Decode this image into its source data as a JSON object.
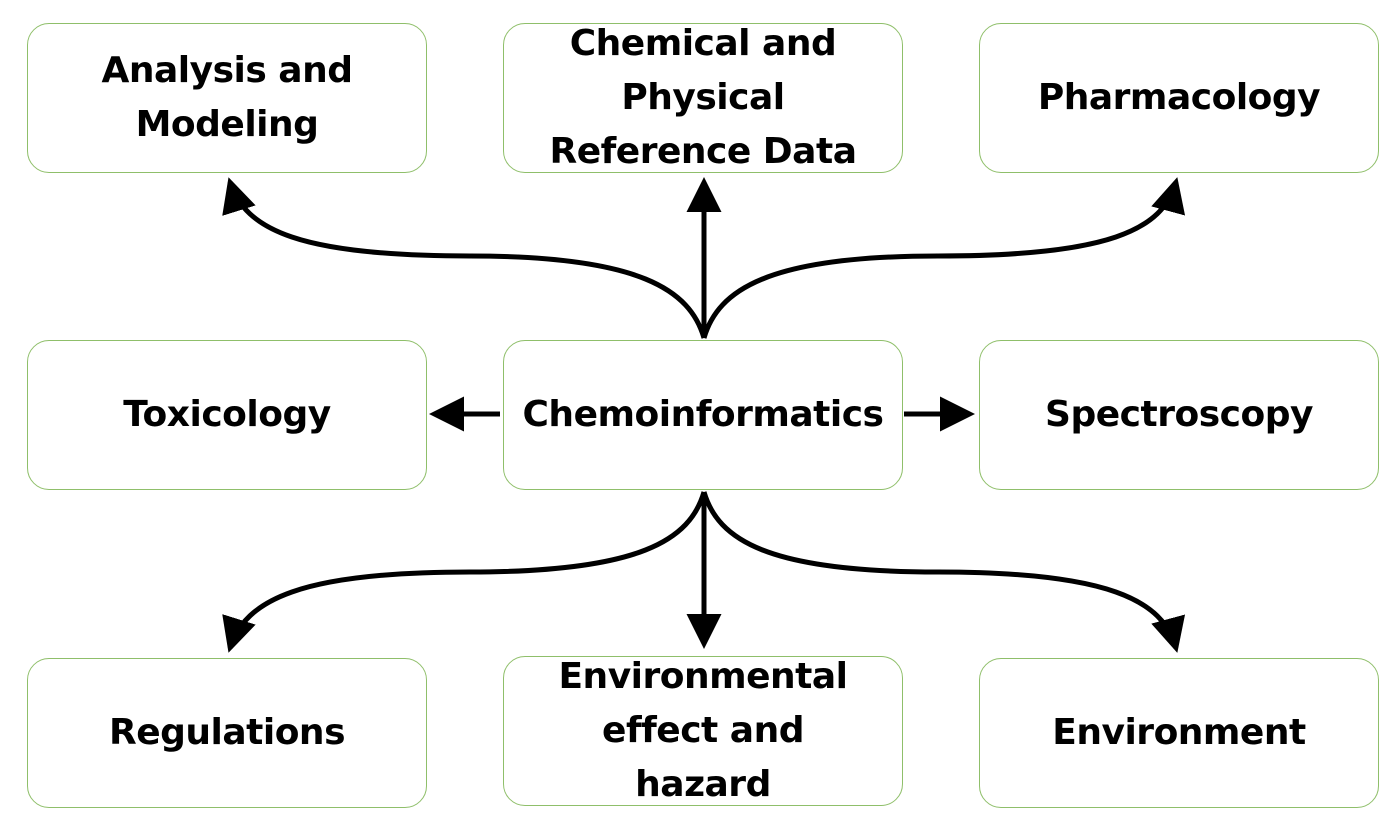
{
  "nodes": {
    "analysis_modeling": "Analysis and Modeling",
    "chemical_physical": "Chemical and Physical Reference Data",
    "pharmacology": "Pharmacology",
    "toxicology": "Toxicology",
    "chemoinformatics": "Chemoinformatics",
    "spectroscopy": "Spectroscopy",
    "regulations": "Regulations",
    "environmental_effect": "Environmental effect and hazard",
    "environment": "Environment"
  },
  "colors": {
    "box_border": "#8fbf6a",
    "arrow": "#000000",
    "text": "#000000"
  }
}
